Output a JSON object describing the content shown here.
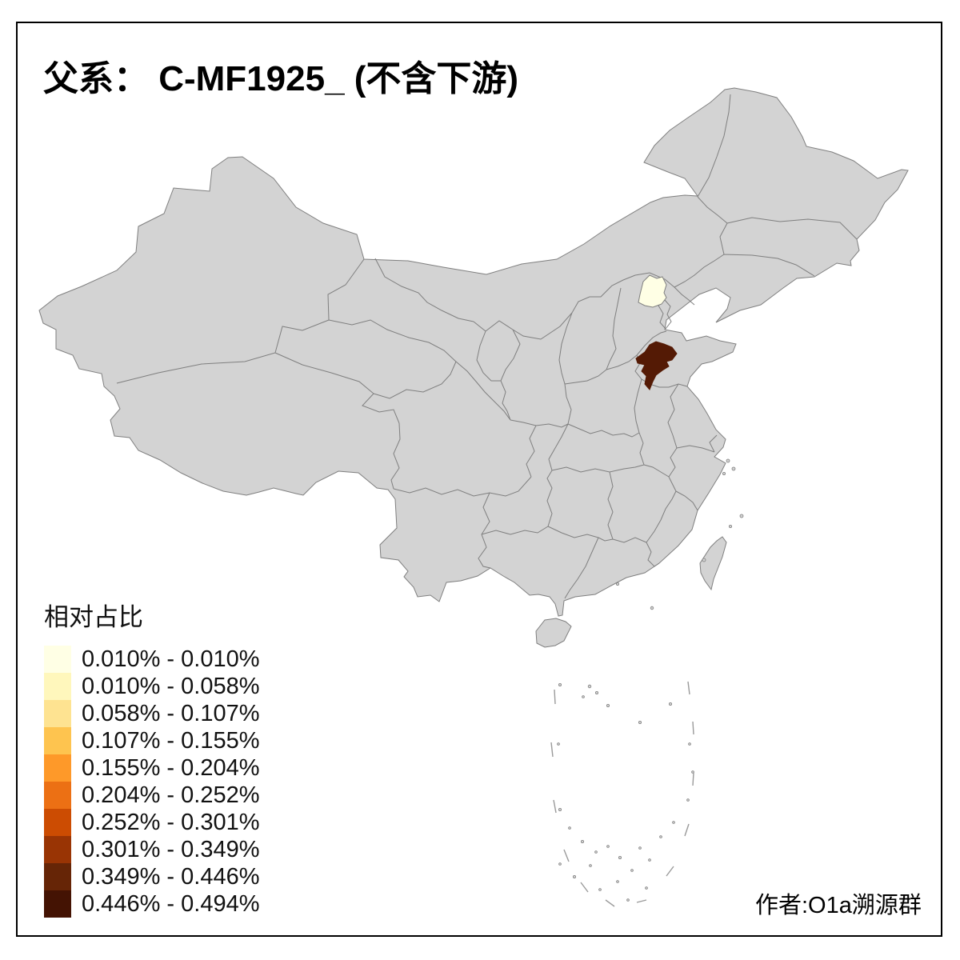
{
  "page": {
    "background": "#ffffff",
    "border_color": "#000000"
  },
  "title": {
    "text": "父系： C-MF1925_ (不含下游)"
  },
  "legend": {
    "title": "相对占比",
    "classes": [
      {
        "label": "0.010% - 0.010%",
        "color": "#FFFFE5"
      },
      {
        "label": "0.010% - 0.058%",
        "color": "#FFF7BC"
      },
      {
        "label": "0.058% - 0.107%",
        "color": "#FEE391"
      },
      {
        "label": "0.107% - 0.155%",
        "color": "#FEC44F"
      },
      {
        "label": "0.155% - 0.204%",
        "color": "#FE9929"
      },
      {
        "label": "0.204% - 0.252%",
        "color": "#EC7014"
      },
      {
        "label": "0.252% - 0.301%",
        "color": "#CC4C02"
      },
      {
        "label": "0.301% - 0.349%",
        "color": "#993404"
      },
      {
        "label": "0.349% - 0.446%",
        "color": "#662506"
      },
      {
        "label": "0.446% - 0.494%",
        "color": "#441303"
      }
    ]
  },
  "map": {
    "base_fill": "#D3D3D3",
    "border_color": "#7F7F7F",
    "sea_mark_color": "#9A9A9A",
    "regions": [
      {
        "name": "pale-region",
        "legend_class": "0.010% - 0.010%",
        "color": "#FFFFE5"
      },
      {
        "name": "dark-region",
        "legend_class": "0.446% - 0.494%",
        "color": "#541A05"
      }
    ]
  },
  "credit": {
    "text": "作者:O1a溯源群"
  }
}
